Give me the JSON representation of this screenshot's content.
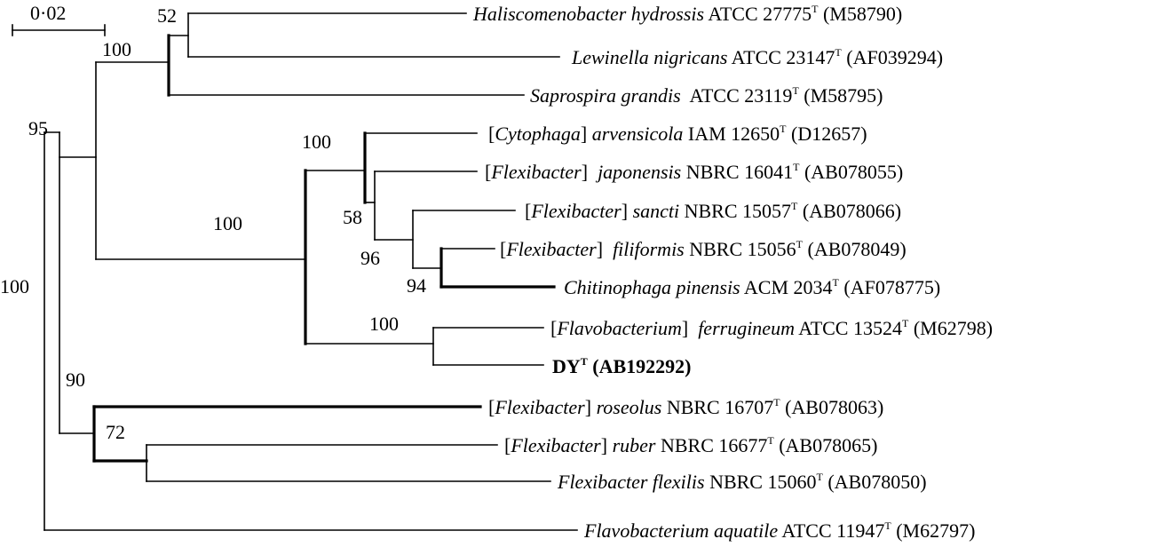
{
  "scale_bar": {
    "label": "0·02"
  },
  "bootstrap": {
    "b52": "52",
    "b100_top": "100",
    "b95": "95",
    "b100_cyto": "100",
    "b100_inner": "100",
    "b58": "58",
    "b96": "96",
    "b94": "94",
    "b100_flavo": "100",
    "b100_root": "100",
    "b90": "90",
    "b72": "72"
  },
  "taxa": [
    {
      "id": "haliscomenobacter",
      "parts": [
        {
          "t": "Haliscomenobacter hydrossis",
          "s": "i"
        },
        {
          "t": " ATCC 27775",
          "s": "n"
        },
        {
          "t": "T",
          "s": "sup"
        },
        {
          "t": " (M58790)",
          "s": "n"
        }
      ]
    },
    {
      "id": "lewinella",
      "parts": [
        {
          "t": "Lewinella nigricans",
          "s": "i"
        },
        {
          "t": " ATCC 23147",
          "s": "n"
        },
        {
          "t": "T",
          "s": "sup"
        },
        {
          "t": " (AF039294)",
          "s": "n"
        }
      ]
    },
    {
      "id": "saprospira",
      "parts": [
        {
          "t": "Saprospira grandis",
          "s": "i"
        },
        {
          "t": "  ATCC 23119",
          "s": "n"
        },
        {
          "t": "T",
          "s": "sup"
        },
        {
          "t": " (M58795)",
          "s": "n"
        }
      ]
    },
    {
      "id": "cytophaga",
      "parts": [
        {
          "t": "[",
          "s": "n"
        },
        {
          "t": "Cytophaga",
          "s": "i"
        },
        {
          "t": "] ",
          "s": "n"
        },
        {
          "t": "arvensicola",
          "s": "i"
        },
        {
          "t": " IAM 12650",
          "s": "n"
        },
        {
          "t": "T",
          "s": "sup"
        },
        {
          "t": " (D12657)",
          "s": "n"
        }
      ]
    },
    {
      "id": "japonensis",
      "parts": [
        {
          "t": "[",
          "s": "n"
        },
        {
          "t": "Flexibacter",
          "s": "i"
        },
        {
          "t": "]  ",
          "s": "n"
        },
        {
          "t": "japonensis",
          "s": "i"
        },
        {
          "t": " NBRC 16041",
          "s": "n"
        },
        {
          "t": "T",
          "s": "sup"
        },
        {
          "t": " (AB078055)",
          "s": "n"
        }
      ]
    },
    {
      "id": "sancti",
      "parts": [
        {
          "t": "[",
          "s": "n"
        },
        {
          "t": "Flexibacter",
          "s": "i"
        },
        {
          "t": "] ",
          "s": "n"
        },
        {
          "t": "sancti",
          "s": "i"
        },
        {
          "t": " NBRC 15057",
          "s": "n"
        },
        {
          "t": "T",
          "s": "sup"
        },
        {
          "t": " (AB078066)",
          "s": "n"
        }
      ]
    },
    {
      "id": "filiformis",
      "parts": [
        {
          "t": "[",
          "s": "n"
        },
        {
          "t": "Flexibacter",
          "s": "i"
        },
        {
          "t": "]  ",
          "s": "n"
        },
        {
          "t": "filiformis",
          "s": "i"
        },
        {
          "t": " NBRC 15056",
          "s": "n"
        },
        {
          "t": "T",
          "s": "sup"
        },
        {
          "t": " (AB078049)",
          "s": "n"
        }
      ]
    },
    {
      "id": "chitinophaga",
      "parts": [
        {
          "t": "Chitinophaga pinensis",
          "s": "i"
        },
        {
          "t": " ACM 2034",
          "s": "n"
        },
        {
          "t": "T",
          "s": "sup"
        },
        {
          "t": " (AF078775)",
          "s": "n"
        }
      ]
    },
    {
      "id": "ferrugineum",
      "parts": [
        {
          "t": "[",
          "s": "n"
        },
        {
          "t": "Flavobacterium",
          "s": "i"
        },
        {
          "t": "]  ",
          "s": "n"
        },
        {
          "t": "ferrugineum",
          "s": "i"
        },
        {
          "t": " ATCC 13524",
          "s": "n"
        },
        {
          "t": "T",
          "s": "sup"
        },
        {
          "t": " (M62798)",
          "s": "n"
        }
      ]
    },
    {
      "id": "dy",
      "parts": [
        {
          "t": "DY",
          "s": "b"
        },
        {
          "t": "T",
          "s": "bsup"
        },
        {
          "t": " (AB192292)",
          "s": "b"
        }
      ]
    },
    {
      "id": "roseolus",
      "parts": [
        {
          "t": "[",
          "s": "n"
        },
        {
          "t": "Flexibacter",
          "s": "i"
        },
        {
          "t": "] ",
          "s": "n"
        },
        {
          "t": "roseolus",
          "s": "i"
        },
        {
          "t": " NBRC 16707",
          "s": "n"
        },
        {
          "t": "T",
          "s": "sup"
        },
        {
          "t": " (AB078063)",
          "s": "n"
        }
      ]
    },
    {
      "id": "ruber",
      "parts": [
        {
          "t": "[",
          "s": "n"
        },
        {
          "t": "Flexibacter",
          "s": "i"
        },
        {
          "t": "] ",
          "s": "n"
        },
        {
          "t": "ruber",
          "s": "i"
        },
        {
          "t": " NBRC 16677",
          "s": "n"
        },
        {
          "t": "T",
          "s": "sup"
        },
        {
          "t": " (AB078065)",
          "s": "n"
        }
      ]
    },
    {
      "id": "flexilis",
      "parts": [
        {
          "t": "Flexibacter flexilis",
          "s": "i"
        },
        {
          "t": " NBRC 15060",
          "s": "n"
        },
        {
          "t": "T",
          "s": "sup"
        },
        {
          "t": " (AB078050)",
          "s": "n"
        }
      ]
    },
    {
      "id": "aquatile",
      "parts": [
        {
          "t": "Flavobacterium aquatile",
          "s": "i"
        },
        {
          "t": " ATCC 11947",
          "s": "n"
        },
        {
          "t": "T",
          "s": "sup"
        },
        {
          "t": " (M62797)",
          "s": "n"
        }
      ]
    }
  ]
}
